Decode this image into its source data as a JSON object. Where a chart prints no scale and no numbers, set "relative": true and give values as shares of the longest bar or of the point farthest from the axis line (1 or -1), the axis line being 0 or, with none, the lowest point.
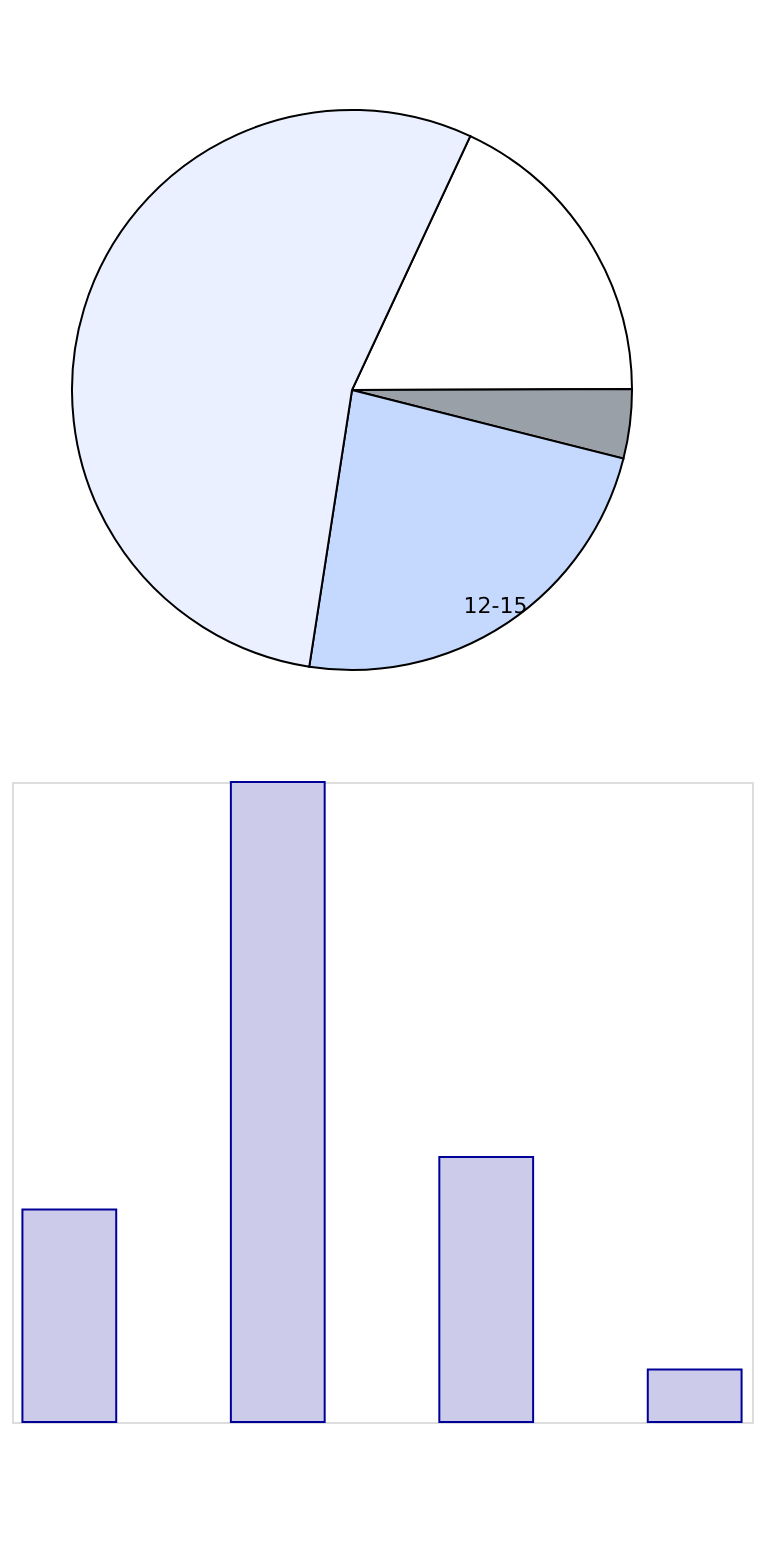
{
  "chart_data": [
    {
      "type": "pie",
      "categories": [
        null,
        null,
        "12-15",
        null
      ],
      "values": [
        18,
        4,
        23.5,
        54.5
      ],
      "colors": [
        "#ffffff",
        "#9aa0a8",
        "#c5d9ff",
        "#eaf0ff"
      ]
    },
    {
      "type": "bar",
      "relative": true,
      "categories": [
        null,
        null,
        null,
        null
      ],
      "values": [
        0.332,
        1,
        0.414,
        0.082
      ],
      "color": "#ccccea"
    }
  ]
}
